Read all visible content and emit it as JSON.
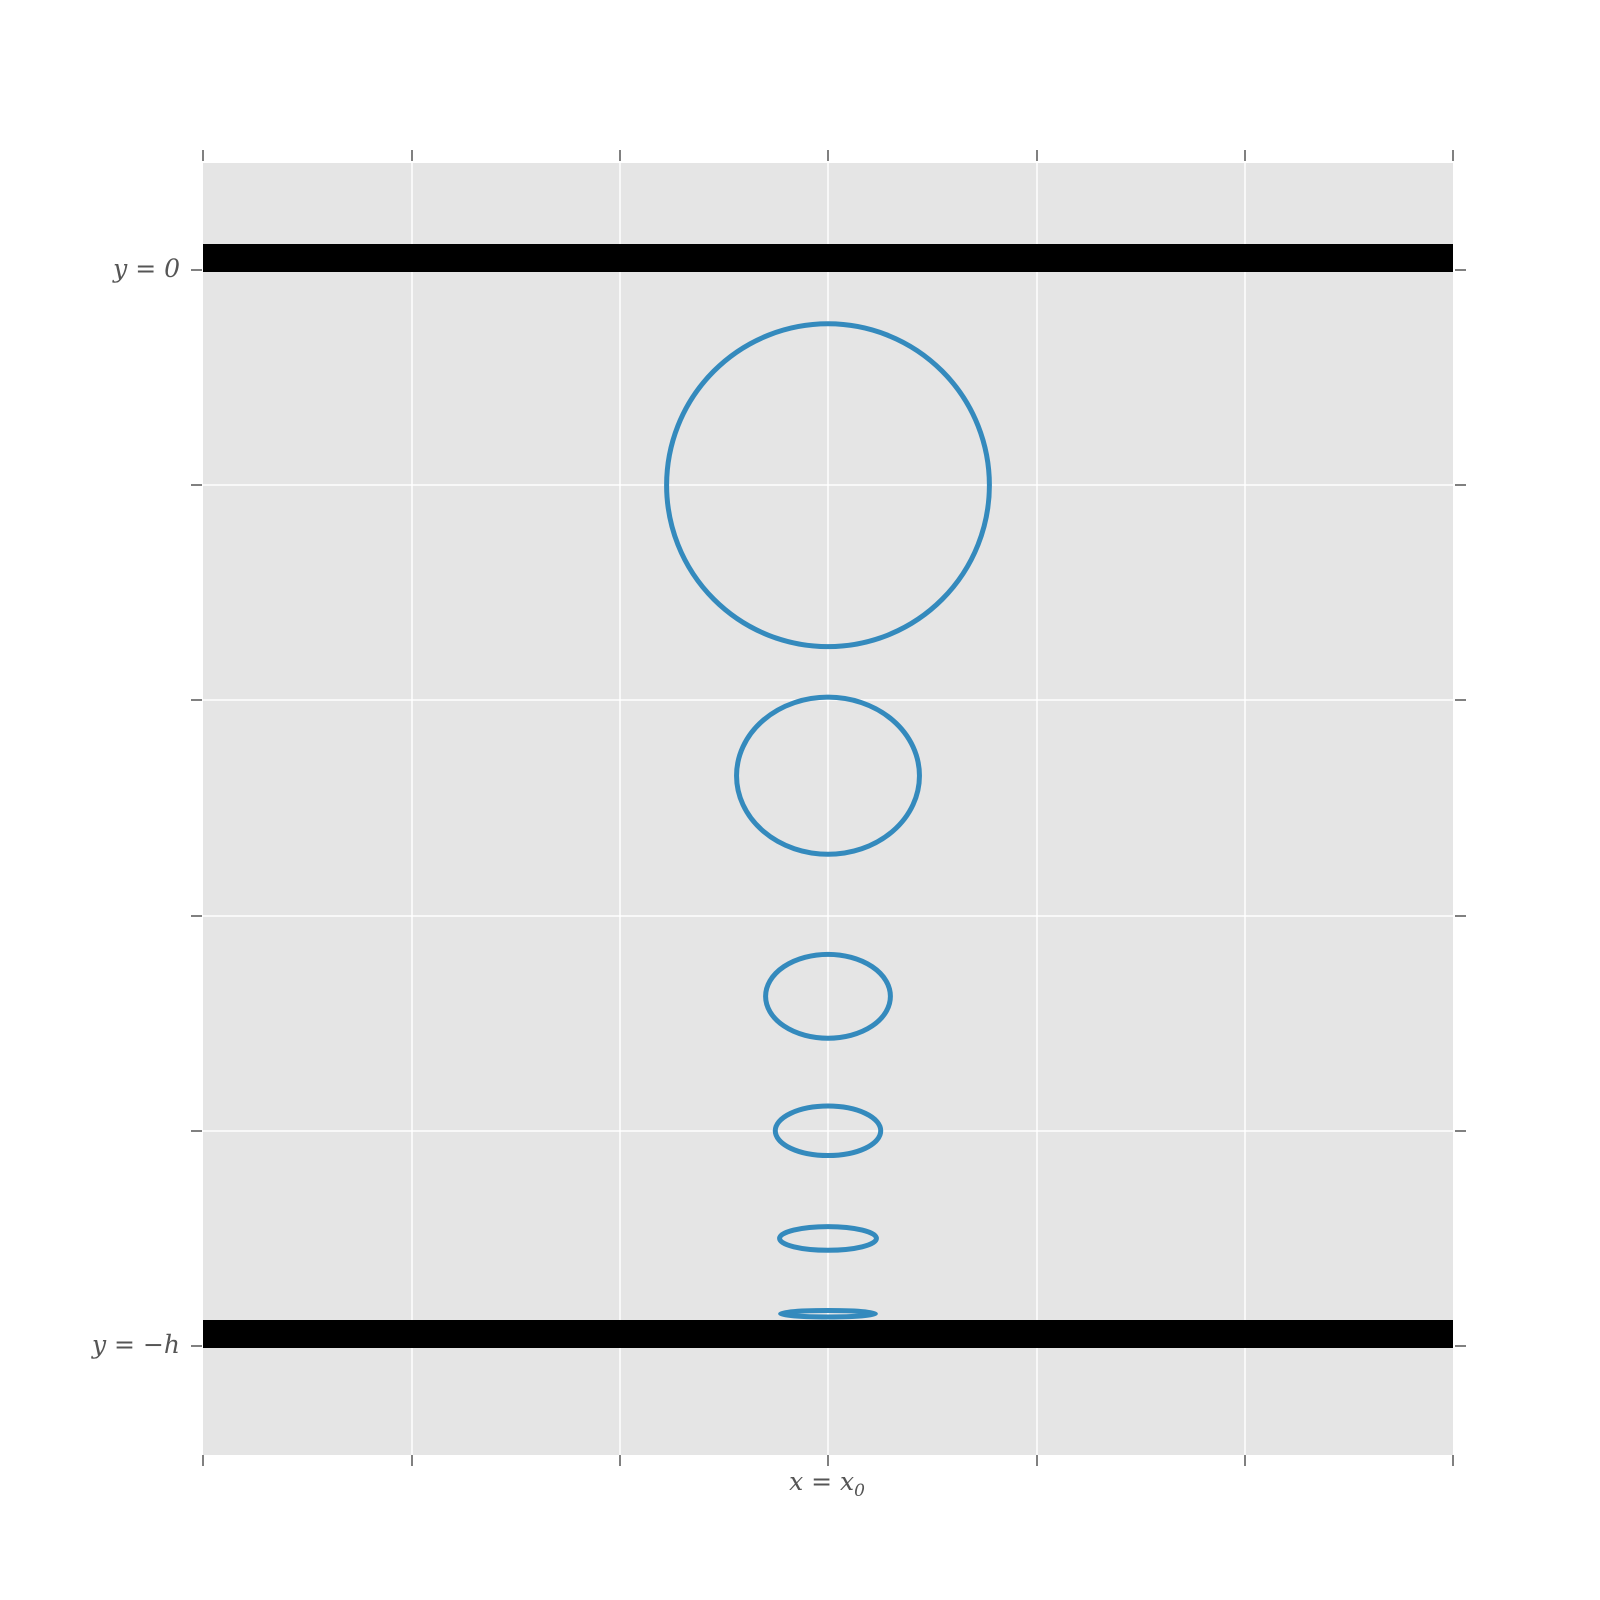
{
  "chart_data": {
    "type": "diagram",
    "title": "",
    "xlabel": "",
    "ylabel": "",
    "grid": true,
    "x_tick_labels": [
      {
        "base": "x = x",
        "subscript": "0"
      }
    ],
    "y_tick_labels": [
      {
        "text": "y = 0"
      },
      {
        "text": "y = −h"
      }
    ],
    "boundaries": [
      {
        "name": "surface",
        "y_fraction_of_h": 0
      },
      {
        "name": "bottom",
        "y_fraction_of_h": -1
      }
    ],
    "ellipses": [
      {
        "depth_fraction": 0.2,
        "semi_major_fraction": 0.15,
        "semi_minor_fraction": 0.15
      },
      {
        "depth_fraction": 0.47,
        "semi_major_fraction": 0.085,
        "semi_minor_fraction": 0.073
      },
      {
        "depth_fraction": 0.675,
        "semi_major_fraction": 0.058,
        "semi_minor_fraction": 0.039
      },
      {
        "depth_fraction": 0.8,
        "semi_major_fraction": 0.049,
        "semi_minor_fraction": 0.023
      },
      {
        "depth_fraction": 0.9,
        "semi_major_fraction": 0.045,
        "semi_minor_fraction": 0.011
      },
      {
        "depth_fraction": 0.97,
        "semi_major_fraction": 0.044,
        "semi_minor_fraction": 0.003
      }
    ],
    "colors": {
      "background": "#e5e5e5",
      "grid": "#ffffff",
      "ellipse": "#348abd",
      "boundary": "#000000",
      "tick": "#555555"
    }
  }
}
